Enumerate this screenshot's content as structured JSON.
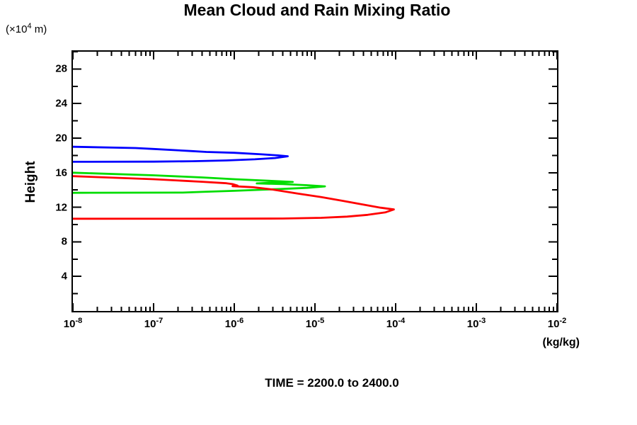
{
  "header": {
    "title": "Mean Cloud and Rain Mixing Ratio"
  },
  "axis_units": {
    "y_unit_pre": "(×10",
    "y_unit_sup": "4",
    "y_unit_post": " m)",
    "x_unit": "(kg/kg)"
  },
  "caption": {
    "time_label": "TIME = 2200.0 to 2400.0"
  },
  "chart_data": {
    "type": "line",
    "title": "Mean Cloud and Rain Mixing Ratio",
    "xlabel": "(kg/kg)",
    "ylabel": "Height",
    "y_axis_unit": "(×10⁴ m)",
    "x_scale": "log",
    "x_log_range": [
      -8,
      -2
    ],
    "ylim": [
      0,
      30
    ],
    "grid": false,
    "legend": "none",
    "annotation": "TIME = 2200.0 to 2400.0",
    "x_ticks": [
      {
        "base": "10",
        "exp": "-8"
      },
      {
        "base": "10",
        "exp": "-7"
      },
      {
        "base": "10",
        "exp": "-6"
      },
      {
        "base": "10",
        "exp": "-5"
      },
      {
        "base": "10",
        "exp": "-4"
      },
      {
        "base": "10",
        "exp": "-3"
      },
      {
        "base": "10",
        "exp": "-2"
      }
    ],
    "x_minor_mantissas": [
      2,
      3,
      4,
      5,
      6,
      7,
      8,
      9
    ],
    "y_major_ticks": [
      {
        "value": 28,
        "label": "28"
      },
      {
        "value": 24,
        "label": "24"
      },
      {
        "value": 20,
        "label": "20"
      },
      {
        "value": 16,
        "label": "16"
      },
      {
        "value": 12,
        "label": "12"
      },
      {
        "value": 8,
        "label": "8"
      },
      {
        "value": 4,
        "label": "4"
      }
    ],
    "y_minor_ticks": [
      2,
      6,
      10,
      14,
      18,
      22,
      26,
      30
    ],
    "series": [
      {
        "name": "blue-profile",
        "color": "#0000ff",
        "points": [
          [
            1e-08,
            19.0
          ],
          [
            6e-08,
            18.85
          ],
          [
            1e-07,
            18.75
          ],
          [
            3e-07,
            18.5
          ],
          [
            4.5e-07,
            18.4
          ],
          [
            1e-06,
            18.3
          ],
          [
            2.2e-06,
            18.12
          ],
          [
            3.5e-06,
            18.0
          ],
          [
            4.6e-06,
            17.9
          ],
          [
            3.2e-06,
            17.7
          ],
          [
            1.8e-06,
            17.55
          ],
          [
            8e-07,
            17.42
          ],
          [
            3e-07,
            17.33
          ],
          [
            1e-07,
            17.28
          ],
          [
            1e-08,
            17.26
          ]
        ]
      },
      {
        "name": "green-profile",
        "color": "#00dd00",
        "points": [
          [
            1e-08,
            16.0
          ],
          [
            1e-07,
            15.7
          ],
          [
            4e-07,
            15.45
          ],
          [
            1e-06,
            15.25
          ],
          [
            2.9e-06,
            15.05
          ],
          [
            5.3e-06,
            14.93
          ],
          [
            3.2e-06,
            14.85
          ],
          [
            1.9e-06,
            14.76
          ],
          [
            4e-06,
            14.68
          ],
          [
            8e-06,
            14.55
          ],
          [
            1.33e-05,
            14.42
          ],
          [
            8e-06,
            14.25
          ],
          [
            4e-06,
            14.12
          ],
          [
            1e-06,
            13.9
          ],
          [
            4e-07,
            13.78
          ],
          [
            2.3e-07,
            13.7
          ],
          [
            1e-08,
            13.67
          ]
        ]
      },
      {
        "name": "red-profile",
        "color": "#ff0000",
        "points": [
          [
            1e-08,
            15.6
          ],
          [
            1e-07,
            15.25
          ],
          [
            4e-07,
            14.95
          ],
          [
            8e-07,
            14.78
          ],
          [
            9.5e-07,
            14.68
          ],
          [
            1.1e-06,
            14.5
          ],
          [
            9.5e-07,
            14.44
          ],
          [
            1.7e-06,
            14.32
          ],
          [
            3e-06,
            14.05
          ],
          [
            6e-06,
            13.6
          ],
          [
            1.2e-05,
            13.17
          ],
          [
            2.2e-05,
            12.75
          ],
          [
            4e-05,
            12.3
          ],
          [
            6.5e-05,
            11.95
          ],
          [
            9.5e-05,
            11.75
          ],
          [
            7.5e-05,
            11.42
          ],
          [
            4.5e-05,
            11.12
          ],
          [
            2.5e-05,
            10.92
          ],
          [
            1.2e-05,
            10.78
          ],
          [
            4e-06,
            10.7
          ],
          [
            1e-06,
            10.68
          ],
          [
            1e-08,
            10.67
          ]
        ]
      }
    ]
  }
}
